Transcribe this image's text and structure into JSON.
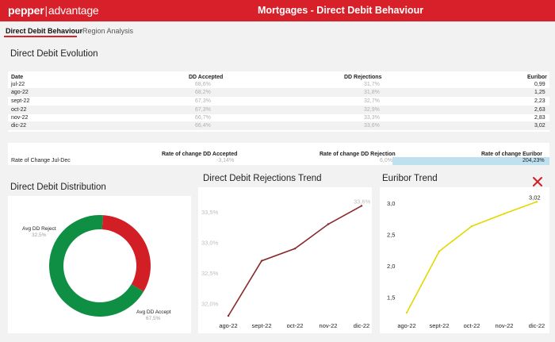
{
  "header": {
    "logo_left": "pepper",
    "logo_sep": "|",
    "logo_right": "advantage",
    "title": "Mortgages - Direct Debit Behaviour",
    "brand_color": "#d8202a"
  },
  "tabs": [
    {
      "label": "Direct Debit Behaviour",
      "active": true
    },
    {
      "label": "-Region Analysis",
      "active": false
    }
  ],
  "evolution": {
    "title": "Direct Debit Evolution",
    "columns": [
      "Date",
      "DD Accepted",
      "DD Rejections",
      "Euribor"
    ],
    "rows": [
      [
        "jul-22",
        "68,6%",
        "31,7%",
        "0,99"
      ],
      [
        "ago-22",
        "68,2%",
        "31,8%",
        "1,25"
      ],
      [
        "sept-22",
        "67,3%",
        "32,7%",
        "2,23"
      ],
      [
        "oct-22",
        "67,3%",
        "32,9%",
        "2,63"
      ],
      [
        "nov-22",
        "66,7%",
        "33,3%",
        "2,83"
      ],
      [
        "dic-22",
        "66,4%",
        "33,6%",
        "3,02"
      ]
    ]
  },
  "rate_change": {
    "columns": [
      "Rate of change DD Accepted",
      "Rate of change DD Rejection",
      "Rate of change Euribor"
    ],
    "row_label": "Rate of Change Jul-Dec",
    "values": [
      "-3,14%",
      "6,0%",
      "204,23%"
    ]
  },
  "distribution": {
    "title": "Direct Debit Distribution",
    "chart_data": {
      "type": "pie",
      "title": "Direct Debit Distribution",
      "labels": [
        "Avg DD Reject",
        "Avg DD Accept"
      ],
      "values": [
        32.5,
        67.5
      ],
      "value_labels": [
        "32,5%",
        "67,5%"
      ],
      "colors": [
        "#d21f26",
        "#0e8f43"
      ]
    }
  },
  "rejections_trend": {
    "title": "Direct Debit Rejections Trend",
    "chart_data": {
      "type": "line",
      "title": "Direct Debit Rejections Trend",
      "x": [
        "ago-22",
        "sept-22",
        "oct-22",
        "nov-22",
        "dic-22"
      ],
      "series": [
        {
          "values": [
            31.8,
            32.7,
            32.9,
            33.3,
            33.6
          ]
        }
      ],
      "yticks": [
        "33,5%",
        "33,0%",
        "32,5%",
        "32,0%"
      ],
      "ylim": [
        31.8,
        33.8
      ],
      "color": "#8a2a2a",
      "end_label": "33,6%"
    }
  },
  "euribor_trend": {
    "title": "Euribor Trend",
    "chart_data": {
      "type": "line",
      "title": "Euribor Trend",
      "x": [
        "ago-22",
        "sept-22",
        "oct-22",
        "nov-22",
        "dic-22"
      ],
      "series": [
        {
          "values": [
            1.25,
            2.23,
            2.63,
            2.83,
            3.02
          ]
        }
      ],
      "yticks": [
        "3,0",
        "2,5",
        "2,0",
        "1,5"
      ],
      "ylim": [
        1.2,
        3.15
      ],
      "color": "#e3d800",
      "end_label": "3,02"
    }
  }
}
